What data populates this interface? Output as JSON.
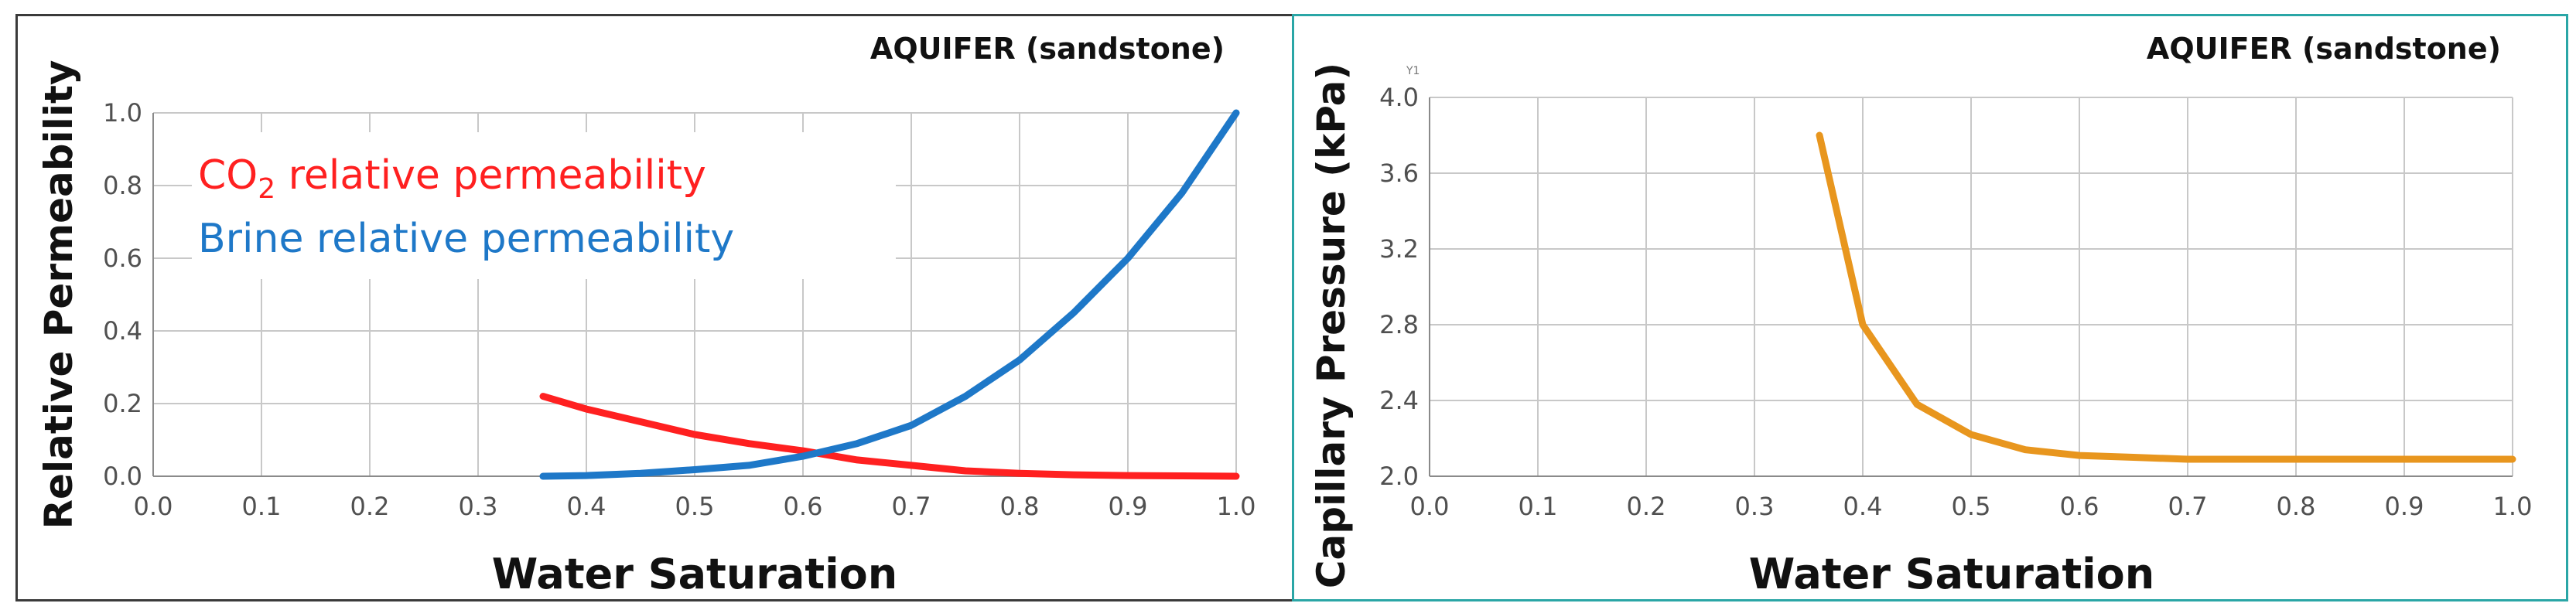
{
  "chart_data": [
    {
      "type": "line",
      "title": "AQUIFER (sandstone)",
      "xlabel": "Water Saturation",
      "ylabel": "Relative Permeability",
      "xlim": [
        0.0,
        1.0
      ],
      "ylim": [
        0.0,
        1.0
      ],
      "xticks": [
        "0.0",
        "0.1",
        "0.2",
        "0.3",
        "0.4",
        "0.5",
        "0.6",
        "0.7",
        "0.8",
        "0.9",
        "1.0"
      ],
      "yticks": [
        "0.0",
        "0.2",
        "0.4",
        "0.6",
        "0.8",
        "1.0"
      ],
      "grid": true,
      "legend_placement": "top-left",
      "series": [
        {
          "name": "CO",
          "name_sub": "2",
          "name_suffix": " relative permeability",
          "color": "#ff2020",
          "x": [
            0.36,
            0.4,
            0.45,
            0.5,
            0.55,
            0.6,
            0.65,
            0.7,
            0.75,
            0.8,
            0.85,
            0.9,
            0.95,
            1.0
          ],
          "y": [
            0.22,
            0.185,
            0.15,
            0.115,
            0.09,
            0.07,
            0.045,
            0.03,
            0.015,
            0.008,
            0.004,
            0.002,
            0.001,
            0.0
          ]
        },
        {
          "name": "Brine relative permeability",
          "color": "#1e78c8",
          "x": [
            0.36,
            0.4,
            0.45,
            0.5,
            0.55,
            0.6,
            0.65,
            0.7,
            0.75,
            0.8,
            0.85,
            0.9,
            0.95,
            1.0
          ],
          "y": [
            0.0,
            0.002,
            0.008,
            0.018,
            0.03,
            0.055,
            0.09,
            0.14,
            0.22,
            0.32,
            0.45,
            0.6,
            0.78,
            1.0
          ]
        }
      ]
    },
    {
      "type": "line",
      "title": "AQUIFER (sandstone)",
      "xlabel": "Water Saturation",
      "ylabel": "Capillary Pressure (kPa)",
      "axis_tag": "Y1",
      "xlim": [
        0.0,
        1.0
      ],
      "ylim": [
        2.0,
        4.0
      ],
      "xticks": [
        "0.0",
        "0.1",
        "0.2",
        "0.3",
        "0.4",
        "0.5",
        "0.6",
        "0.7",
        "0.8",
        "0.9",
        "1.0"
      ],
      "yticks": [
        "2.0",
        "2.4",
        "2.8",
        "3.2",
        "3.6",
        "4.0"
      ],
      "grid": true,
      "series": [
        {
          "color": "#e8961e",
          "x": [
            0.36,
            0.4,
            0.45,
            0.5,
            0.55,
            0.6,
            0.65,
            0.7,
            0.8,
            0.9,
            1.0
          ],
          "y": [
            3.8,
            2.8,
            2.38,
            2.22,
            2.14,
            2.11,
            2.1,
            2.09,
            2.09,
            2.09,
            2.09
          ]
        }
      ]
    }
  ]
}
